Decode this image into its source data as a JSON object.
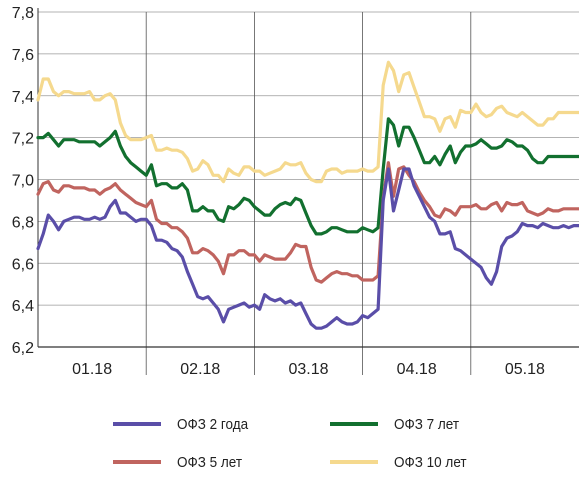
{
  "chart_data": {
    "type": "line",
    "title": "",
    "xlabel": "",
    "ylabel": "",
    "ylim": [
      6.2,
      7.8
    ],
    "yticks": [
      "6,2",
      "6,4",
      "6,6",
      "6,8",
      "7,0",
      "7,2",
      "7,4",
      "7,6",
      "7,8"
    ],
    "x_categories": [
      "01.18",
      "02.18",
      "03.18",
      "04.18",
      "05.18"
    ],
    "grid": true,
    "legend_position": "bottom",
    "x": [
      0,
      1,
      2,
      3,
      4,
      5,
      6,
      7,
      8,
      9,
      10,
      11,
      12,
      13,
      14,
      15,
      16,
      17,
      18,
      19,
      20,
      21,
      22,
      23,
      24,
      25,
      26,
      27,
      28,
      29,
      30,
      31,
      32,
      33,
      34,
      35,
      36,
      37,
      38,
      39,
      40,
      41,
      42,
      43,
      44,
      45,
      46,
      47,
      48,
      49,
      50,
      51,
      52,
      53,
      54,
      55,
      56,
      57,
      58,
      59,
      60,
      61,
      62,
      63,
      64,
      65,
      66,
      67,
      68,
      69,
      70,
      71,
      72,
      73,
      74,
      75,
      76,
      77,
      78,
      79,
      80,
      81,
      82,
      83,
      84,
      85,
      86,
      87,
      88,
      89,
      90,
      91,
      92,
      93,
      94,
      95,
      96,
      97,
      98,
      99,
      100,
      101,
      102,
      103,
      104,
      105
    ],
    "series": [
      {
        "name": "ОФЗ 2 года",
        "color": "#5a4ea8",
        "values": [
          6.67,
          6.74,
          6.83,
          6.8,
          6.76,
          6.8,
          6.81,
          6.82,
          6.82,
          6.81,
          6.81,
          6.82,
          6.81,
          6.82,
          6.87,
          6.9,
          6.84,
          6.84,
          6.82,
          6.8,
          6.81,
          6.81,
          6.78,
          6.71,
          6.71,
          6.7,
          6.67,
          6.66,
          6.63,
          6.56,
          6.5,
          6.44,
          6.43,
          6.44,
          6.41,
          6.38,
          6.32,
          6.38,
          6.39,
          6.4,
          6.41,
          6.39,
          6.4,
          6.38,
          6.45,
          6.43,
          6.42,
          6.43,
          6.41,
          6.42,
          6.4,
          6.41,
          6.36,
          6.31,
          6.29,
          6.29,
          6.3,
          6.32,
          6.34,
          6.32,
          6.31,
          6.31,
          6.32,
          6.35,
          6.34,
          6.36,
          6.38,
          6.9,
          7.05,
          6.85,
          6.95,
          7.05,
          7.05,
          6.97,
          6.92,
          6.87,
          6.82,
          6.8,
          6.74,
          6.74,
          6.75,
          6.67,
          6.66,
          6.64,
          6.62,
          6.6,
          6.58,
          6.53,
          6.5,
          6.56,
          6.68,
          6.72,
          6.73,
          6.75,
          6.79,
          6.78,
          6.78,
          6.77,
          6.79,
          6.78,
          6.77,
          6.77,
          6.78,
          6.77,
          6.78,
          6.78
        ]
      },
      {
        "name": "ОФЗ 5 лет",
        "color": "#c0645f",
        "values": [
          6.93,
          6.98,
          6.99,
          6.95,
          6.94,
          6.97,
          6.97,
          6.96,
          6.96,
          6.96,
          6.95,
          6.95,
          6.93,
          6.95,
          6.96,
          6.98,
          6.95,
          6.93,
          6.91,
          6.89,
          6.88,
          6.87,
          6.9,
          6.81,
          6.79,
          6.79,
          6.77,
          6.77,
          6.75,
          6.72,
          6.65,
          6.65,
          6.67,
          6.66,
          6.64,
          6.61,
          6.55,
          6.64,
          6.64,
          6.66,
          6.66,
          6.64,
          6.64,
          6.61,
          6.64,
          6.63,
          6.62,
          6.62,
          6.62,
          6.65,
          6.69,
          6.68,
          6.68,
          6.58,
          6.52,
          6.51,
          6.53,
          6.55,
          6.56,
          6.55,
          6.55,
          6.54,
          6.54,
          6.52,
          6.52,
          6.52,
          6.54,
          6.91,
          7.08,
          6.92,
          7.05,
          7.06,
          7.02,
          6.99,
          6.94,
          6.9,
          6.87,
          6.83,
          6.82,
          6.86,
          6.85,
          6.83,
          6.87,
          6.87,
          6.87,
          6.88,
          6.86,
          6.86,
          6.88,
          6.89,
          6.85,
          6.89,
          6.88,
          6.88,
          6.89,
          6.85,
          6.84,
          6.83,
          6.84,
          6.86,
          6.85,
          6.85,
          6.86,
          6.86,
          6.86,
          6.86
        ]
      },
      {
        "name": "ОФЗ 7 лет",
        "color": "#12702f",
        "values": [
          7.2,
          7.2,
          7.22,
          7.19,
          7.16,
          7.19,
          7.19,
          7.19,
          7.18,
          7.18,
          7.18,
          7.18,
          7.16,
          7.18,
          7.2,
          7.23,
          7.16,
          7.11,
          7.08,
          7.06,
          7.04,
          7.02,
          7.07,
          6.97,
          6.98,
          6.98,
          6.96,
          6.96,
          6.98,
          6.95,
          6.85,
          6.85,
          6.87,
          6.85,
          6.85,
          6.81,
          6.8,
          6.87,
          6.86,
          6.88,
          6.91,
          6.9,
          6.87,
          6.85,
          6.83,
          6.83,
          6.86,
          6.88,
          6.89,
          6.88,
          6.91,
          6.9,
          6.84,
          6.78,
          6.74,
          6.74,
          6.75,
          6.77,
          6.77,
          6.76,
          6.75,
          6.75,
          6.75,
          6.77,
          6.76,
          6.75,
          6.77,
          7.05,
          7.29,
          7.26,
          7.16,
          7.25,
          7.25,
          7.2,
          7.14,
          7.08,
          7.08,
          7.11,
          7.07,
          7.12,
          7.16,
          7.08,
          7.13,
          7.16,
          7.16,
          7.17,
          7.19,
          7.17,
          7.15,
          7.15,
          7.16,
          7.19,
          7.18,
          7.16,
          7.16,
          7.14,
          7.1,
          7.08,
          7.08,
          7.11,
          7.11,
          7.11,
          7.11,
          7.11,
          7.11,
          7.11
        ]
      },
      {
        "name": "ОФЗ 10 лет",
        "color": "#f5d98e",
        "values": [
          7.38,
          7.48,
          7.48,
          7.42,
          7.4,
          7.42,
          7.42,
          7.41,
          7.41,
          7.41,
          7.42,
          7.38,
          7.38,
          7.4,
          7.41,
          7.38,
          7.27,
          7.21,
          7.19,
          7.19,
          7.19,
          7.2,
          7.21,
          7.14,
          7.14,
          7.15,
          7.14,
          7.14,
          7.13,
          7.1,
          7.04,
          7.05,
          7.09,
          7.07,
          7.02,
          7.02,
          6.99,
          7.05,
          7.03,
          7.02,
          7.06,
          7.06,
          7.04,
          7.04,
          7.02,
          7.03,
          7.04,
          7.05,
          7.08,
          7.07,
          7.07,
          7.08,
          7.03,
          7.0,
          6.99,
          6.99,
          7.04,
          7.05,
          7.05,
          7.03,
          7.04,
          7.04,
          7.04,
          7.05,
          7.04,
          7.04,
          7.06,
          7.45,
          7.56,
          7.52,
          7.42,
          7.5,
          7.51,
          7.44,
          7.37,
          7.3,
          7.3,
          7.29,
          7.23,
          7.29,
          7.3,
          7.25,
          7.33,
          7.32,
          7.32,
          7.36,
          7.32,
          7.3,
          7.31,
          7.34,
          7.35,
          7.32,
          7.31,
          7.3,
          7.32,
          7.3,
          7.28,
          7.26,
          7.26,
          7.29,
          7.29,
          7.32,
          7.32,
          7.32,
          7.32,
          7.32
        ]
      }
    ]
  }
}
